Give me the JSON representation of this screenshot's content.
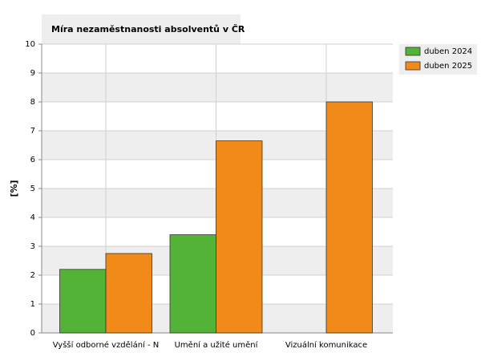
{
  "chart_data": {
    "type": "bar",
    "title": "Míra nezaměstnanosti absolventů v ČR",
    "y_label": "[%]",
    "categories": [
      "Vyšší odborné vzdělání - N",
      "Umění a užité umění",
      "Vizuální komunikace"
    ],
    "series": [
      {
        "name": "duben 2024",
        "color": "#52b336",
        "values": [
          2.2,
          3.4,
          null
        ]
      },
      {
        "name": "duben 2025",
        "color": "#f28a1a",
        "values": [
          2.75,
          6.65,
          8.0
        ]
      }
    ],
    "ylim": [
      0,
      10
    ],
    "yticks": [
      0,
      1,
      2,
      3,
      4,
      5,
      6,
      7,
      8,
      9,
      10
    ],
    "grid": true,
    "legend": "right"
  }
}
